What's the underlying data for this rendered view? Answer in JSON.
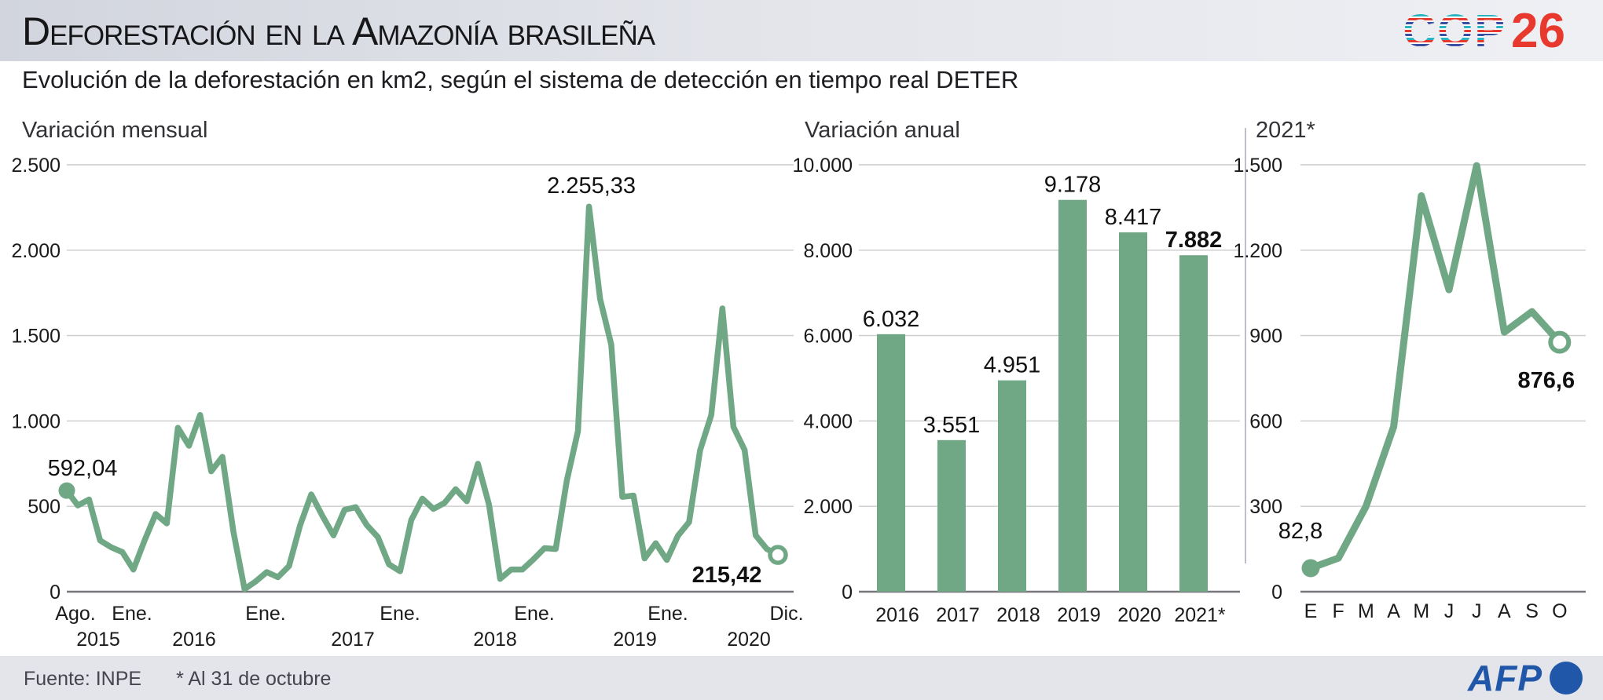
{
  "header": {
    "title": "Deforestación en la Amazonía brasileña",
    "logo": {
      "cop": "COP",
      "num": "26"
    }
  },
  "subtitle": "Evolución de la deforestación en km2, según el sistema de detección en tiempo real DETER",
  "footer": {
    "source": "Fuente: INPE",
    "note": "* Al 31 de octubre",
    "afp": "AFP"
  },
  "colors": {
    "accent_green": "#70A885",
    "grid_gray": "#cbcbcb",
    "axis_gray": "#77777b",
    "cop_red": "#E8392E",
    "cop_blue": "#3950A2",
    "cop_teal": "#2AB3C0",
    "afp_blue": "#2157A8",
    "footer_bg": "#E3E5EA"
  },
  "chart_data": [
    {
      "type": "line",
      "title": "Variación mensual",
      "x_range": "Ago. 2015 - Dic. 2020 (mensual)",
      "x_tick_labels": [
        "Ago.",
        "Ene.",
        "Ene.",
        "Ene.",
        "Ene.",
        "Ene.",
        "Dic."
      ],
      "year_labels": [
        "2015",
        "2016",
        "2017",
        "2018",
        "2019",
        "2020"
      ],
      "ylim": [
        0,
        2500
      ],
      "grid": true,
      "y_ticks": [
        {
          "value": 2500,
          "label": "2.500"
        },
        {
          "value": 2000,
          "label": "2.000"
        },
        {
          "value": 1500,
          "label": "1.500"
        },
        {
          "value": 1000,
          "label": "1.000"
        },
        {
          "value": 500,
          "label": "500"
        },
        {
          "value": 0,
          "label": "0"
        }
      ],
      "values": [
        592.04,
        505,
        540,
        300,
        260,
        232,
        130,
        300,
        455,
        400,
        960,
        855,
        1035,
        705,
        790,
        350,
        15,
        60,
        115,
        85,
        150,
        390,
        570,
        445,
        330,
        480,
        495,
        390,
        320,
        160,
        120,
        420,
        545,
        485,
        520,
        600,
        530,
        749,
        510,
        75,
        130,
        130,
        190,
        255,
        250,
        650,
        940,
        2255.33,
        1714,
        1447,
        555,
        563,
        195,
        284,
        186,
        327,
        407,
        829,
        1035,
        1659,
        965,
        830,
        330,
        250,
        215.42
      ],
      "annotations": [
        {
          "index": 0,
          "text": "592,04",
          "bold": false,
          "marker": "dot"
        },
        {
          "index": 47,
          "text": "2.255,33",
          "bold": false,
          "marker": "none"
        },
        {
          "index": 64,
          "text": "215,42",
          "bold": true,
          "marker": "open-circle"
        }
      ]
    },
    {
      "type": "bar",
      "title": "Variación anual",
      "categories": [
        "2016",
        "2017",
        "2018",
        "2019",
        "2020",
        "2021*"
      ],
      "values": [
        6032,
        3551,
        4951,
        9178,
        8417,
        7882
      ],
      "value_labels": [
        "6.032",
        "3.551",
        "4.951",
        "9.178",
        "8.417",
        "7.882"
      ],
      "bold_label_index": 5,
      "ylim": [
        0,
        10000
      ],
      "grid": true,
      "y_ticks": [
        {
          "value": 10000,
          "label": "10.000"
        },
        {
          "value": 8000,
          "label": "8.000"
        },
        {
          "value": 6000,
          "label": "6.000"
        },
        {
          "value": 4000,
          "label": "4.000"
        },
        {
          "value": 2000,
          "label": "2.000"
        },
        {
          "value": 0,
          "label": "0"
        }
      ]
    },
    {
      "type": "line",
      "title": "2021*",
      "categories": [
        "E",
        "F",
        "M",
        "A",
        "M",
        "J",
        "J",
        "A",
        "S",
        "O"
      ],
      "values": [
        82.8,
        118,
        300,
        580,
        1391,
        1061,
        1497,
        912,
        984,
        876.6
      ],
      "ylim": [
        0,
        1500
      ],
      "grid": true,
      "y_ticks": [
        {
          "value": 1500,
          "label": "1.500"
        },
        {
          "value": 1200,
          "label": "1.200"
        },
        {
          "value": 900,
          "label": "900"
        },
        {
          "value": 600,
          "label": "600"
        },
        {
          "value": 300,
          "label": "300"
        },
        {
          "value": 0,
          "label": "0"
        }
      ],
      "annotations": [
        {
          "index": 0,
          "text": "82,8",
          "bold": false,
          "marker": "dot"
        },
        {
          "index": 9,
          "text": "876,6",
          "bold": true,
          "marker": "open-circle"
        }
      ]
    }
  ]
}
